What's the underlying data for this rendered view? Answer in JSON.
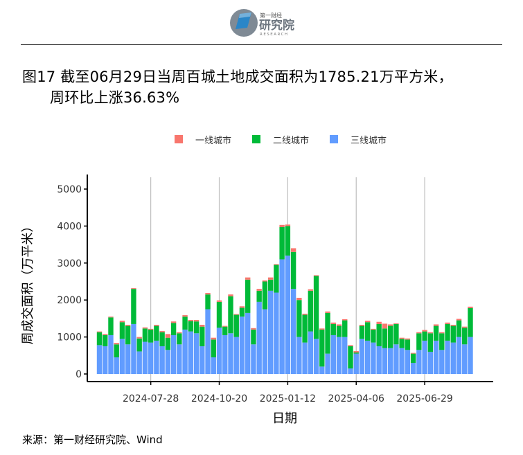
{
  "header": {
    "logo_text_main": "研究院",
    "logo_text_top": "第一财经",
    "logo_text_sub": "RESEARCH"
  },
  "title_line1": "图17 截至06月29日当周百城土地成交面积为1785.21万平方米，",
  "title_line2": "周环比上涨36.63%",
  "source": "来源：第一财经研究院、Wind",
  "colors": {
    "tier1": "#F8766D",
    "tier2": "#00BA38",
    "tier3": "#619CFF",
    "grid": "#BEBEBE"
  },
  "chart_data": {
    "type": "bar",
    "stacked": true,
    "xlabel": "日期",
    "ylabel": "周成交面积（万平米）",
    "ylim": [
      0,
      5200
    ],
    "yticks": [
      0,
      1000,
      2000,
      3000,
      4000,
      5000
    ],
    "xtick_labels": [
      "2024-07-28",
      "2024-10-20",
      "2025-01-12",
      "2025-04-06",
      "2025-06-29"
    ],
    "xtick_positions": [
      9,
      21,
      33,
      45,
      57
    ],
    "legend": [
      "一线城市",
      "二线城市",
      "三线城市"
    ],
    "legend_position": "top",
    "series": [
      {
        "name": "一线城市",
        "values": [
          20,
          30,
          20,
          40,
          40,
          30,
          20,
          40,
          30,
          20,
          30,
          30,
          100,
          40,
          30,
          40,
          30,
          40,
          50,
          40,
          50,
          40,
          20,
          50,
          20,
          40,
          60,
          40,
          50,
          30,
          60,
          20,
          60,
          40,
          100,
          60,
          30,
          40,
          20,
          30,
          40,
          40,
          40,
          30,
          30,
          40,
          30,
          40,
          20,
          60,
          130,
          40,
          20,
          30,
          30,
          20,
          30,
          40,
          30,
          40,
          30,
          40,
          30,
          40,
          30,
          40
        ]
      },
      {
        "name": "二线城市",
        "values": [
          350,
          300,
          480,
          350,
          450,
          500,
          950,
          350,
          360,
          350,
          400,
          380,
          330,
          330,
          300,
          350,
          280,
          320,
          530,
          400,
          480,
          700,
          230,
          1000,
          600,
          240,
          900,
          400,
          300,
          750,
          300,
          750,
          870,
          800,
          1000,
          1000,
          750,
          1100,
          1700,
          1000,
          1100,
          300,
          300,
          450,
          600,
          30,
          350,
          500,
          350,
          600,
          530,
          600,
          550,
          250,
          280,
          250,
          450,
          250,
          500,
          400,
          450,
          450,
          450,
          450,
          450,
          780
        ]
      },
      {
        "name": "三线城市",
        "values": [
          780,
          750,
          1050,
          450,
          950,
          800,
          1350,
          610,
          870,
          850,
          900,
          750,
          650,
          1050,
          800,
          1200,
          1150,
          1100,
          750,
          1750,
          450,
          1250,
          1050,
          1100,
          1000,
          1550,
          1650,
          800,
          1950,
          1750,
          2250,
          2200,
          3100,
          3200,
          2300,
          1000,
          850,
          1150,
          950,
          200,
          550,
          1050,
          1000,
          1000,
          150,
          550,
          950,
          900,
          850,
          750,
          700,
          700,
          800,
          700,
          650,
          300,
          650,
          900,
          600,
          900,
          650,
          900,
          850,
          1000,
          800,
          1000
        ]
      }
    ]
  }
}
